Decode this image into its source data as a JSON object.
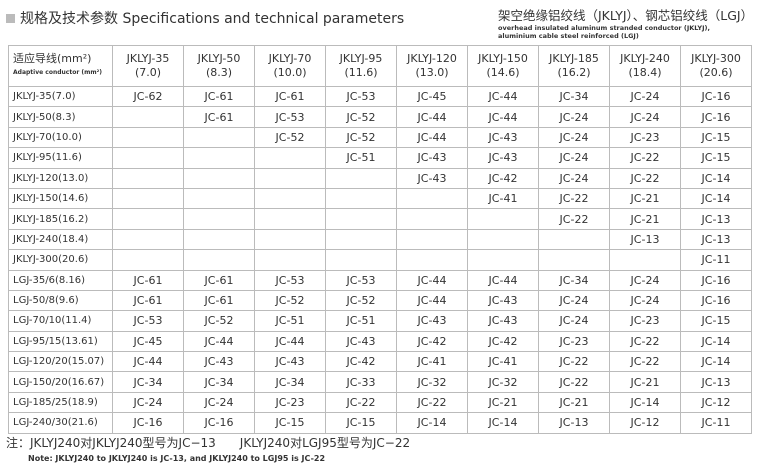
{
  "header": {
    "title": "规格及技术参数 Specifications and technical parameters",
    "subtitle_cn": "架空绝缘铝绞线（JKLYJ）、钢芯铝绞线（LGJ）",
    "subtitle_en_1": "overhead insulated aluminum stranded conductor (JKLYJ),",
    "subtitle_en_2": "aluminium cable steel reinforced (LGJ)"
  },
  "table": {
    "corner_cn": "适应导线(mm²)",
    "corner_en": "Adaptive conductor (mm²)",
    "columns": [
      {
        "name": "JKLYJ-35",
        "size": "(7.0)"
      },
      {
        "name": "JKLYJ-50",
        "size": "(8.3)"
      },
      {
        "name": "JKLYJ-70",
        "size": "(10.0)"
      },
      {
        "name": "JKLYJ-95",
        "size": "(11.6)"
      },
      {
        "name": "JKLYJ-120",
        "size": "(13.0)"
      },
      {
        "name": "JKLYJ-150",
        "size": "(14.6)"
      },
      {
        "name": "JKLYJ-185",
        "size": "(16.2)"
      },
      {
        "name": "JKLYJ-240",
        "size": "(18.4)"
      },
      {
        "name": "JKLYJ-300",
        "size": "(20.6)"
      }
    ],
    "rows": [
      {
        "label": "JKLYJ-35(7.0)",
        "cells": [
          "JC-62",
          "JC-61",
          "JC-61",
          "JC-53",
          "JC-45",
          "JC-44",
          "JC-34",
          "JC-24",
          "JC-16"
        ]
      },
      {
        "label": "JKLYJ-50(8.3)",
        "cells": [
          null,
          "JC-61",
          "JC-53",
          "JC-52",
          "JC-44",
          "JC-44",
          "JC-24",
          "JC-24",
          "JC-16"
        ]
      },
      {
        "label": "JKLYJ-70(10.0)",
        "cells": [
          null,
          null,
          "JC-52",
          "JC-52",
          "JC-44",
          "JC-43",
          "JC-24",
          "JC-23",
          "JC-15"
        ]
      },
      {
        "label": "JKLYJ-95(11.6)",
        "cells": [
          null,
          null,
          null,
          "JC-51",
          "JC-43",
          "JC-43",
          "JC-24",
          "JC-22",
          "JC-15"
        ]
      },
      {
        "label": "JKLYJ-120(13.0)",
        "cells": [
          null,
          null,
          null,
          null,
          "JC-43",
          "JC-42",
          "JC-24",
          "JC-22",
          "JC-14"
        ]
      },
      {
        "label": "JKLYJ-150(14.6)",
        "cells": [
          null,
          null,
          null,
          null,
          null,
          "JC-41",
          "JC-22",
          "JC-21",
          "JC-14"
        ]
      },
      {
        "label": "JKLYJ-185(16.2)",
        "cells": [
          null,
          null,
          null,
          null,
          null,
          null,
          "JC-22",
          "JC-21",
          "JC-13"
        ]
      },
      {
        "label": "JKLYJ-240(18.4)",
        "cells": [
          null,
          null,
          null,
          null,
          null,
          null,
          null,
          "JC-13",
          "JC-13"
        ]
      },
      {
        "label": "JKLYJ-300(20.6)",
        "cells": [
          null,
          null,
          null,
          null,
          null,
          null,
          null,
          null,
          "JC-11"
        ]
      },
      {
        "label": "LGJ-35/6(8.16)",
        "cells": [
          "JC-61",
          "JC-61",
          "JC-53",
          "JC-53",
          "JC-44",
          "JC-44",
          "JC-34",
          "JC-24",
          "JC-16"
        ]
      },
      {
        "label": "LGJ-50/8(9.6)",
        "cells": [
          "JC-61",
          "JC-61",
          "JC-52",
          "JC-52",
          "JC-44",
          "JC-43",
          "JC-24",
          "JC-24",
          "JC-16"
        ]
      },
      {
        "label": "LGJ-70/10(11.4)",
        "cells": [
          "JC-53",
          "JC-52",
          "JC-51",
          "JC-51",
          "JC-43",
          "JC-43",
          "JC-24",
          "JC-23",
          "JC-15"
        ]
      },
      {
        "label": "LGJ-95/15(13.61)",
        "cells": [
          "JC-45",
          "JC-44",
          "JC-44",
          "JC-43",
          "JC-42",
          "JC-42",
          "JC-23",
          "JC-22",
          "JC-14"
        ]
      },
      {
        "label": "LGJ-120/20(15.07)",
        "cells": [
          "JC-44",
          "JC-43",
          "JC-43",
          "JC-42",
          "JC-41",
          "JC-41",
          "JC-22",
          "JC-22",
          "JC-14"
        ]
      },
      {
        "label": "LGJ-150/20(16.67)",
        "cells": [
          "JC-34",
          "JC-34",
          "JC-34",
          "JC-33",
          "JC-32",
          "JC-32",
          "JC-22",
          "JC-21",
          "JC-13"
        ]
      },
      {
        "label": "LGJ-185/25(18.9)",
        "cells": [
          "JC-24",
          "JC-24",
          "JC-23",
          "JC-22",
          "JC-22",
          "JC-21",
          "JC-21",
          "JC-14",
          "JC-12"
        ]
      },
      {
        "label": "LGJ-240/30(21.6)",
        "cells": [
          "JC-16",
          "JC-16",
          "JC-15",
          "JC-15",
          "JC-14",
          "JC-14",
          "JC-13",
          "JC-12",
          "JC-11"
        ]
      }
    ]
  },
  "note": {
    "cn": "注：JKLYJ240对JKLYJ240型号为JC−13　　JKLYJ240对LGJ95型号为JC−22",
    "en": "Note: JKLYJ240 to JKLYJ240 is JC-13, and JKLYJ240 to LGJ95 is JC-22"
  }
}
